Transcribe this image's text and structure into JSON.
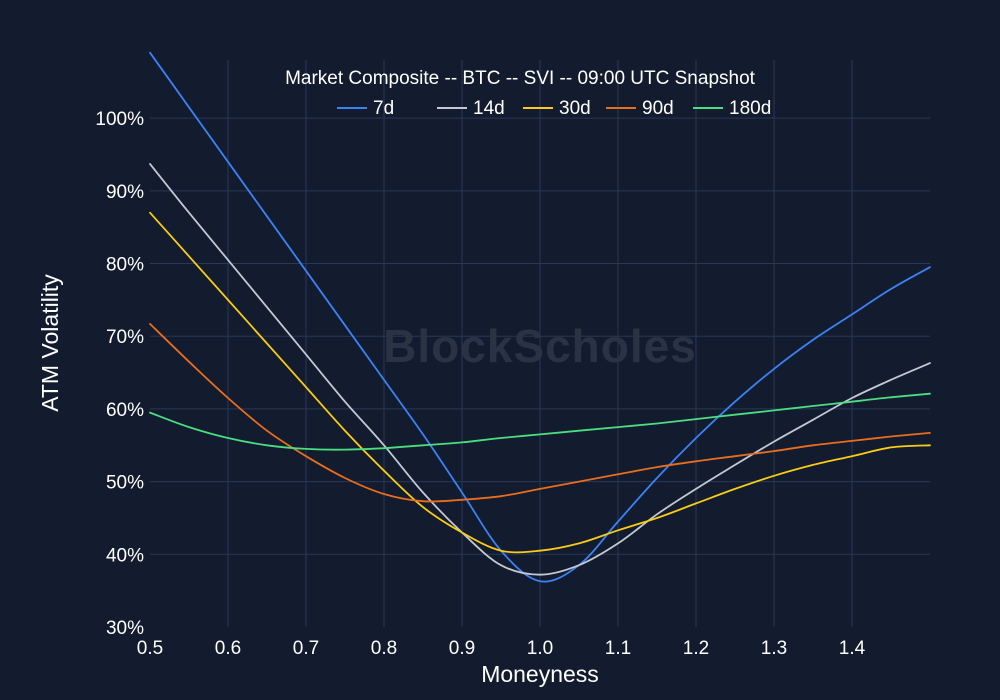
{
  "chart_data": {
    "type": "line",
    "title": "Market Composite -- BTC -- SVI -- 09:00 UTC Snapshot",
    "xlabel": "Moneyness",
    "ylabel": "ATM Volatility",
    "watermark": "BlockScholes",
    "xlim": [
      0.5,
      1.5
    ],
    "ylim": [
      30,
      108
    ],
    "xticks": [
      "0.5",
      "0.6",
      "0.7",
      "0.8",
      "0.9",
      "1.0",
      "1.1",
      "1.2",
      "1.3",
      "1.4"
    ],
    "xtick_values": [
      0.5,
      0.6,
      0.7,
      0.8,
      0.9,
      1.0,
      1.1,
      1.2,
      1.3,
      1.4
    ],
    "yticks": [
      "30%",
      "40%",
      "50%",
      "60%",
      "70%",
      "80%",
      "90%",
      "100%"
    ],
    "ytick_values": [
      30,
      40,
      50,
      60,
      70,
      80,
      90,
      100
    ],
    "grid": true,
    "legend_position": "top-center",
    "x": [
      0.5,
      0.55,
      0.6,
      0.65,
      0.7,
      0.75,
      0.8,
      0.85,
      0.9,
      0.95,
      1.0,
      1.05,
      1.1,
      1.15,
      1.2,
      1.25,
      1.3,
      1.35,
      1.4,
      1.45,
      1.5
    ],
    "series": [
      {
        "name": "7d",
        "color": "#3b82f6",
        "values": [
          109,
          101.5,
          94,
          86.5,
          79,
          71.5,
          64,
          56.5,
          48.5,
          40.5,
          36.3,
          38.5,
          44.5,
          50.5,
          56,
          61,
          65.5,
          69.5,
          73,
          76.5,
          79.5
        ]
      },
      {
        "name": "14d",
        "color": "#c4c8d2",
        "values": [
          93.7,
          87,
          80.5,
          74,
          67.5,
          61,
          55,
          48.5,
          43,
          38.5,
          37.2,
          38.5,
          41.5,
          45.5,
          49,
          52.3,
          55.5,
          58.5,
          61.5,
          64,
          66.3
        ]
      },
      {
        "name": "30d",
        "color": "#facc15",
        "values": [
          87,
          81,
          75,
          69,
          63,
          57,
          51.5,
          46.5,
          43,
          40.5,
          40.5,
          41.5,
          43.3,
          45,
          47,
          49,
          50.8,
          52.3,
          53.5,
          54.7,
          55
        ]
      },
      {
        "name": "90d",
        "color": "#ea6d1e",
        "values": [
          71.7,
          66.5,
          61.5,
          57,
          53.5,
          50.5,
          48.3,
          47.3,
          47.5,
          48,
          49,
          50,
          51,
          52,
          52.8,
          53.5,
          54.2,
          55,
          55.6,
          56.2,
          56.7
        ]
      },
      {
        "name": "180d",
        "color": "#4ade80",
        "values": [
          59.5,
          57.5,
          56,
          55,
          54.5,
          54.4,
          54.6,
          55,
          55.4,
          56,
          56.5,
          57,
          57.5,
          58,
          58.6,
          59.2,
          59.8,
          60.4,
          61,
          61.6,
          62.1
        ]
      }
    ]
  }
}
